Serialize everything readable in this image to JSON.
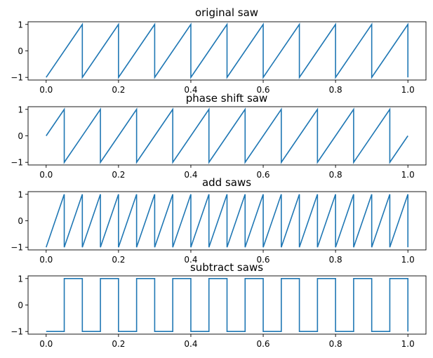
{
  "figure": {
    "background": "#ffffff",
    "line_color": "#1f77b4"
  },
  "chart_data": [
    {
      "type": "line",
      "title": "original saw",
      "xlabel": "",
      "ylabel": "",
      "xlim": [
        -0.05,
        1.05
      ],
      "ylim": [
        -1.1,
        1.1
      ],
      "xticks": [
        0.0,
        0.2,
        0.4,
        0.6,
        0.8,
        1.0
      ],
      "xtick_labels": [
        "0.0",
        "0.2",
        "0.4",
        "0.6",
        "0.8",
        "1.0"
      ],
      "yticks": [
        -1,
        0,
        1
      ],
      "ytick_labels": [
        "−1",
        "0",
        "1"
      ],
      "grid": false,
      "series": [
        {
          "x": [
            0.0,
            0.1,
            0.1,
            0.2,
            0.2,
            0.3,
            0.3,
            0.4,
            0.4,
            0.5,
            0.5,
            0.6,
            0.6,
            0.7,
            0.7,
            0.8,
            0.8,
            0.9,
            0.9,
            1.0,
            1.0
          ],
          "y": [
            -1,
            1,
            -1,
            1,
            -1,
            1,
            -1,
            1,
            -1,
            1,
            -1,
            1,
            -1,
            1,
            -1,
            1,
            -1,
            1,
            -1,
            1,
            -1
          ]
        }
      ]
    },
    {
      "type": "line",
      "title": "phase shift saw",
      "xlabel": "",
      "ylabel": "",
      "xlim": [
        -0.05,
        1.05
      ],
      "ylim": [
        -1.1,
        1.1
      ],
      "xticks": [
        0.0,
        0.2,
        0.4,
        0.6,
        0.8,
        1.0
      ],
      "xtick_labels": [
        "0.0",
        "0.2",
        "0.4",
        "0.6",
        "0.8",
        "1.0"
      ],
      "yticks": [
        -1,
        0,
        1
      ],
      "ytick_labels": [
        "−1",
        "0",
        "1"
      ],
      "grid": false,
      "series": [
        {
          "x": [
            0.0,
            0.05,
            0.05,
            0.15,
            0.15,
            0.25,
            0.25,
            0.35,
            0.35,
            0.45,
            0.45,
            0.55,
            0.55,
            0.65,
            0.65,
            0.75,
            0.75,
            0.85,
            0.85,
            0.95,
            0.95,
            1.0
          ],
          "y": [
            0,
            1,
            -1,
            1,
            -1,
            1,
            -1,
            1,
            -1,
            1,
            -1,
            1,
            -1,
            1,
            -1,
            1,
            -1,
            1,
            -1,
            1,
            -1,
            0
          ]
        }
      ]
    },
    {
      "type": "line",
      "title": "add saws",
      "xlabel": "",
      "ylabel": "",
      "xlim": [
        -0.05,
        1.05
      ],
      "ylim": [
        -1.1,
        1.1
      ],
      "xticks": [
        0.0,
        0.2,
        0.4,
        0.6,
        0.8,
        1.0
      ],
      "xtick_labels": [
        "0.0",
        "0.2",
        "0.4",
        "0.6",
        "0.8",
        "1.0"
      ],
      "yticks": [
        -1,
        0,
        1
      ],
      "ytick_labels": [
        "−1",
        "0",
        "1"
      ],
      "grid": false,
      "series": [
        {
          "x": [
            0.0,
            0.05,
            0.05,
            0.1,
            0.1,
            0.15,
            0.15,
            0.2,
            0.2,
            0.25,
            0.25,
            0.3,
            0.3,
            0.35,
            0.35,
            0.4,
            0.4,
            0.45,
            0.45,
            0.5,
            0.5,
            0.55,
            0.55,
            0.6,
            0.6,
            0.65,
            0.65,
            0.7,
            0.7,
            0.75,
            0.75,
            0.8,
            0.8,
            0.85,
            0.85,
            0.9,
            0.9,
            0.95,
            0.95,
            1.0,
            1.0
          ],
          "y": [
            -1,
            1,
            -1,
            1,
            -1,
            1,
            -1,
            1,
            -1,
            1,
            -1,
            1,
            -1,
            1,
            -1,
            1,
            -1,
            1,
            -1,
            1,
            -1,
            1,
            -1,
            1,
            -1,
            1,
            -1,
            1,
            -1,
            1,
            -1,
            1,
            -1,
            1,
            -1,
            1,
            -1,
            1,
            -1,
            1,
            -1
          ]
        }
      ]
    },
    {
      "type": "line",
      "title": "subtract saws",
      "xlabel": "",
      "ylabel": "",
      "xlim": [
        -0.05,
        1.05
      ],
      "ylim": [
        -1.1,
        1.1
      ],
      "xticks": [
        0.0,
        0.2,
        0.4,
        0.6,
        0.8,
        1.0
      ],
      "xtick_labels": [
        "0.0",
        "0.2",
        "0.4",
        "0.6",
        "0.8",
        "1.0"
      ],
      "yticks": [
        -1,
        0,
        1
      ],
      "ytick_labels": [
        "−1",
        "0",
        "1"
      ],
      "grid": false,
      "series": [
        {
          "x": [
            0.0,
            0.05,
            0.05,
            0.1,
            0.1,
            0.15,
            0.15,
            0.2,
            0.2,
            0.25,
            0.25,
            0.3,
            0.3,
            0.35,
            0.35,
            0.4,
            0.4,
            0.45,
            0.45,
            0.5,
            0.5,
            0.55,
            0.55,
            0.6,
            0.6,
            0.65,
            0.65,
            0.7,
            0.7,
            0.75,
            0.75,
            0.8,
            0.8,
            0.85,
            0.85,
            0.9,
            0.9,
            0.95,
            0.95,
            1.0,
            1.0
          ],
          "y": [
            -1,
            -1,
            1,
            1,
            -1,
            -1,
            1,
            1,
            -1,
            -1,
            1,
            1,
            -1,
            -1,
            1,
            1,
            -1,
            -1,
            1,
            1,
            -1,
            -1,
            1,
            1,
            -1,
            -1,
            1,
            1,
            -1,
            -1,
            1,
            1,
            -1,
            -1,
            1,
            1,
            -1,
            -1,
            1,
            1,
            -1
          ]
        }
      ]
    }
  ]
}
